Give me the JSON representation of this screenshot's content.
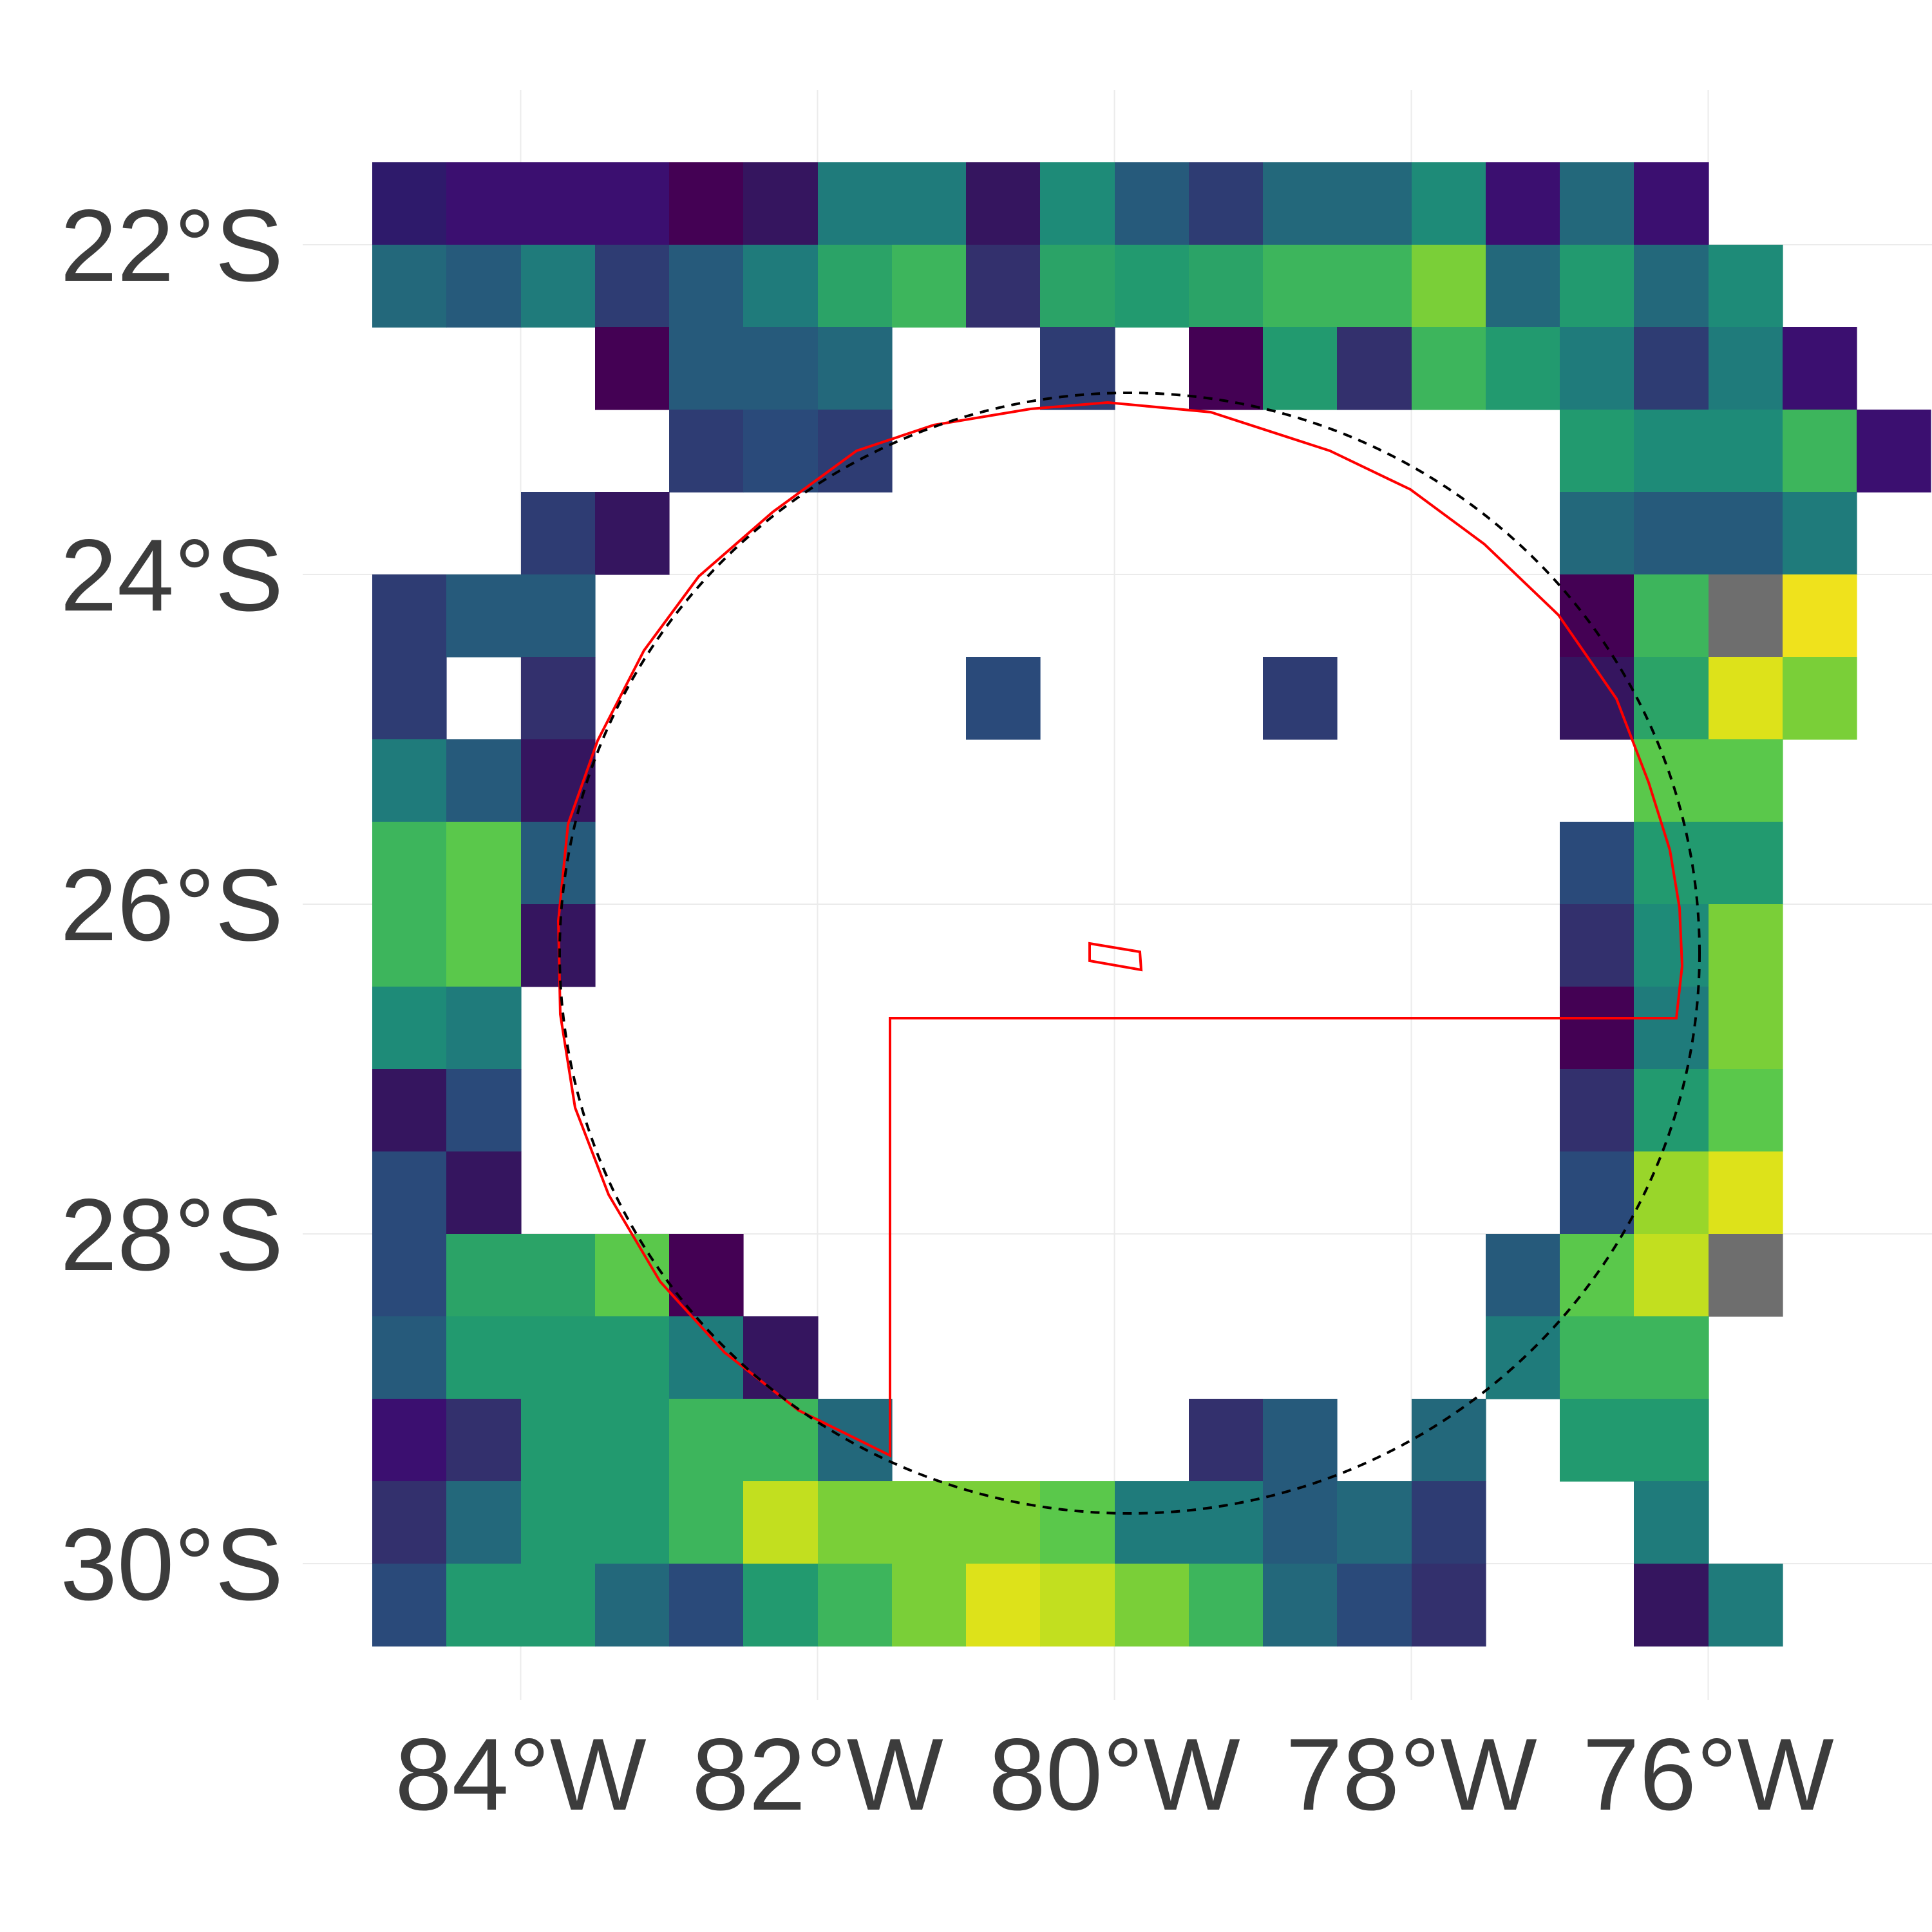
{
  "chart_data": {
    "type": "heatmap",
    "title": "",
    "xlabel": "",
    "ylabel": "",
    "projection": "lon-lat",
    "x_ticks": [
      {
        "value": -84,
        "label": "84°W"
      },
      {
        "value": -82,
        "label": "82°W"
      },
      {
        "value": -80,
        "label": "80°W"
      },
      {
        "value": -78,
        "label": "78°W"
      },
      {
        "value": -76,
        "label": "76°W"
      }
    ],
    "y_ticks": [
      {
        "value": -22,
        "label": "22°S"
      },
      {
        "value": -24,
        "label": "24°S"
      },
      {
        "value": -26,
        "label": "26°S"
      },
      {
        "value": -28,
        "label": "28°S"
      },
      {
        "value": -30,
        "label": "30°S"
      }
    ],
    "xlim": [
      -86,
      -74.5
    ],
    "ylim": [
      -31,
      -20.5
    ],
    "grid": true,
    "legend": "none",
    "colormap": "viridis",
    "na_color": "#6e6e6e",
    "cell_size_deg": 0.5,
    "lon_start": -85,
    "lat_start": -21.5,
    "colors": {
      "A": "#440154",
      "B": "#3b0f70",
      "C": "#35155f",
      "D": "#2e1a6b",
      "E": "#33306d",
      "F": "#2e3c73",
      "G": "#2a4a7a",
      "H": "#265a7b",
      "I": "#23687b",
      "J": "#1f7b7b",
      "K": "#1e8b78",
      "L": "#229a6f",
      "M": "#2ba367",
      "N": "#3db55c",
      "O": "#5ac84b",
      "P": "#7acf38",
      "Q": "#99d62a",
      "R": "#c2df1f",
      "S": "#dde21a",
      "T": "#efe21c",
      "X": "#6e6e6e"
    },
    "grid_rows": [
      "DBBBACJJCKHFIIKBIB...",
      "IHJFHJMNEMLMNNPILIK.",
      "...AHHI..F.ALENLJFJB",
      "....FGF.........LKKNB",
      "..FC............IHHJ",
      "FHH.............ANXT",
      "F.E.....G...F...CMSP",
      "JHC..............OO",
      "NOH.............GLL",
      "NOC.............EKP",
      "KJ..............AJP",
      "CG..............ELO",
      "GC..............GQS",
      "GMMOA..........HORX",
      "HLLLJC.........JNN",
      "BELLNNI....EH.I.LL",
      "EILLNRPPPOJJHIF..J",
      "GLLIGLNPSRPNIGE..CJ"
    ],
    "overlays": {
      "study_region_outline": {
        "type": "polygon",
        "color": "#ff0000",
        "style": "solid"
      },
      "island_outline": {
        "type": "polygon",
        "color": "#ff0000",
        "style": "solid"
      },
      "buffer_circle": {
        "type": "circle",
        "center": [
          -79.75,
          -26.25
        ],
        "radius_deg": 3.75,
        "color": "#000000",
        "style": "dashed"
      }
    }
  }
}
